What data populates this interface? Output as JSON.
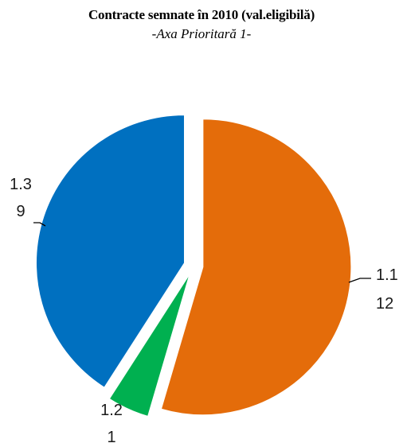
{
  "chart_data": {
    "type": "pie",
    "title": "Contracte semnate în 2010 (val.eligibilă)",
    "subtitle": "-Axa Prioritară 1-",
    "slices": [
      {
        "label": "1.1",
        "value": 12,
        "color": "#e46c0a"
      },
      {
        "label": "1.2",
        "value": 1,
        "color": "#00b050"
      },
      {
        "label": "1.3",
        "value": 9,
        "color": "#0070c0"
      }
    ],
    "legend": "none",
    "data_labels": "label and value, outside with leader lines"
  }
}
